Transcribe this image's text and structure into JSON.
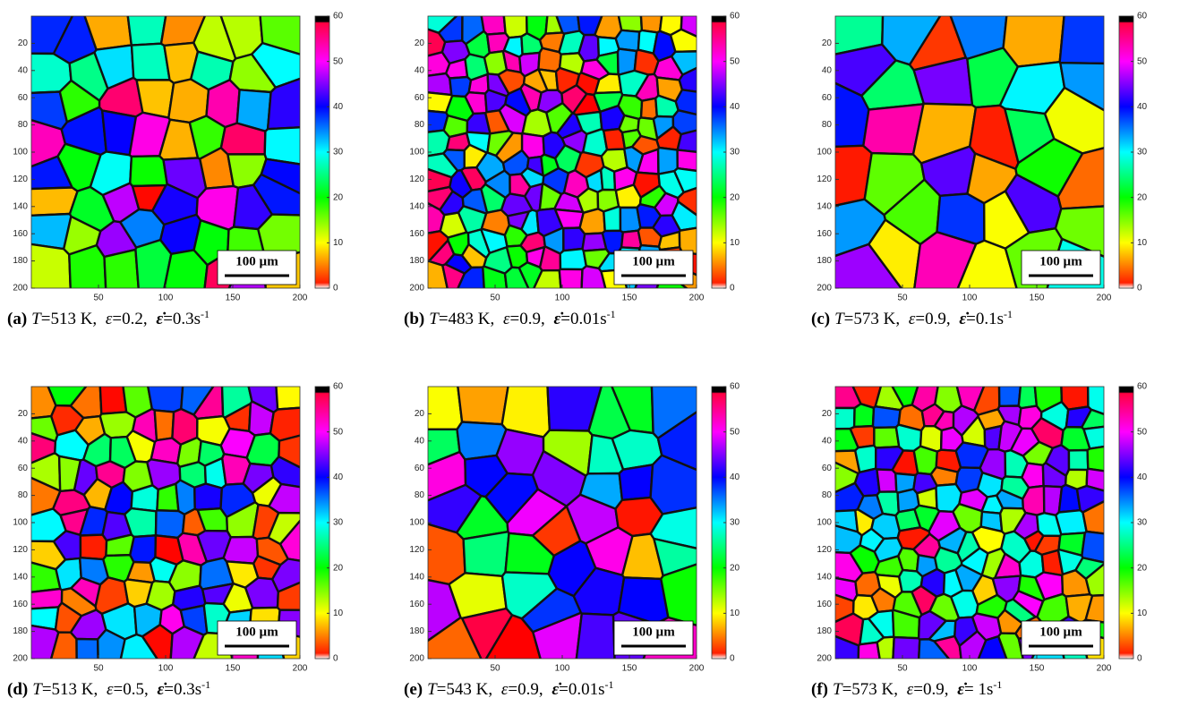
{
  "panels": [
    {
      "caption": [
        {
          "text": "(a)",
          "style": "bold"
        },
        {
          "text": "T",
          "style": "italic"
        },
        {
          "text": "=513 K, "
        },
        {
          "text": "ε",
          "style": "italic"
        },
        {
          "text": "=0.2, "
        },
        {
          "text": "ε̇",
          "style": "bold-italic"
        },
        {
          "text": "=0.3s"
        },
        {
          "text": "-1",
          "style": "sup"
        }
      ],
      "xlim": [
        0,
        200
      ],
      "ylim": [
        0,
        200
      ],
      "xticks": [
        50,
        100,
        150,
        200
      ],
      "yticks": [
        20,
        40,
        60,
        80,
        100,
        120,
        140,
        160,
        180,
        200
      ],
      "colorbar": {
        "lim": [
          0,
          60
        ],
        "ticks": [
          0,
          10,
          20,
          30,
          40,
          50,
          60
        ]
      },
      "scale_bar": "100 µm"
    },
    {
      "caption": [
        {
          "text": "(b)",
          "style": "bold"
        },
        {
          "text": "T",
          "style": "italic"
        },
        {
          "text": "=483 K, "
        },
        {
          "text": "ε",
          "style": "italic"
        },
        {
          "text": "=0.9, "
        },
        {
          "text": "ε̇",
          "style": "bold-italic"
        },
        {
          "text": "=0.01s"
        },
        {
          "text": "-1",
          "style": "sup"
        }
      ],
      "xlim": [
        0,
        200
      ],
      "ylim": [
        0,
        200
      ],
      "xticks": [
        50,
        100,
        150,
        200
      ],
      "yticks": [
        20,
        40,
        60,
        80,
        100,
        120,
        140,
        160,
        180,
        200
      ],
      "colorbar": {
        "lim": [
          0,
          60
        ],
        "ticks": [
          0,
          10,
          20,
          30,
          40,
          50,
          60
        ]
      },
      "scale_bar": "100 µm"
    },
    {
      "caption": [
        {
          "text": "(c)",
          "style": "bold"
        },
        {
          "text": "T",
          "style": "italic"
        },
        {
          "text": "=573 K, "
        },
        {
          "text": "ε",
          "style": "italic"
        },
        {
          "text": "=0.9, "
        },
        {
          "text": "ε̇",
          "style": "bold-italic"
        },
        {
          "text": "=0.1s"
        },
        {
          "text": "-1",
          "style": "sup"
        }
      ],
      "xlim": [
        0,
        200
      ],
      "ylim": [
        0,
        200
      ],
      "xticks": [
        50,
        100,
        150,
        200
      ],
      "yticks": [
        20,
        40,
        60,
        80,
        100,
        120,
        140,
        160,
        180,
        200
      ],
      "colorbar": {
        "lim": [
          0,
          60
        ],
        "ticks": [
          0,
          10,
          20,
          30,
          40,
          50,
          60
        ]
      },
      "scale_bar": "100 µm"
    },
    {
      "caption": [
        {
          "text": "(d)",
          "style": "bold"
        },
        {
          "text": "T",
          "style": "italic"
        },
        {
          "text": "=513 K, "
        },
        {
          "text": "ε",
          "style": "italic"
        },
        {
          "text": "=0.5, "
        },
        {
          "text": "ε̇",
          "style": "bold-italic"
        },
        {
          "text": "=0.3s"
        },
        {
          "text": "-1",
          "style": "sup"
        }
      ],
      "xlim": [
        0,
        200
      ],
      "ylim": [
        0,
        200
      ],
      "xticks": [
        50,
        100,
        150,
        200
      ],
      "yticks": [
        20,
        40,
        60,
        80,
        100,
        120,
        140,
        160,
        180,
        200
      ],
      "colorbar": {
        "lim": [
          0,
          60
        ],
        "ticks": [
          0,
          10,
          20,
          30,
          40,
          50,
          60
        ]
      },
      "scale_bar": "100 µm"
    },
    {
      "caption": [
        {
          "text": "(e)",
          "style": "bold"
        },
        {
          "text": "T",
          "style": "italic"
        },
        {
          "text": "=543 K, "
        },
        {
          "text": "ε",
          "style": "italic"
        },
        {
          "text": "=0.9, "
        },
        {
          "text": "ε̇",
          "style": "bold-italic"
        },
        {
          "text": "=0.01s"
        },
        {
          "text": "-1",
          "style": "sup"
        }
      ],
      "xlim": [
        0,
        200
      ],
      "ylim": [
        0,
        200
      ],
      "xticks": [
        50,
        100,
        150,
        200
      ],
      "yticks": [
        20,
        40,
        60,
        80,
        100,
        120,
        140,
        160,
        180,
        200
      ],
      "colorbar": {
        "lim": [
          0,
          60
        ],
        "ticks": [
          0,
          10,
          20,
          30,
          40,
          50,
          60
        ]
      },
      "scale_bar": "100 µm"
    },
    {
      "caption": [
        {
          "text": "(f)",
          "style": "bold"
        },
        {
          "text": "T",
          "style": "italic"
        },
        {
          "text": "=573 K, "
        },
        {
          "text": "ε",
          "style": "italic"
        },
        {
          "text": "=0.9, "
        },
        {
          "text": "ε̇",
          "style": "bold-italic"
        },
        {
          "text": "= 1s"
        },
        {
          "text": "-1",
          "style": "sup"
        }
      ],
      "xlim": [
        0,
        200
      ],
      "ylim": [
        0,
        200
      ],
      "xticks": [
        50,
        100,
        150,
        200
      ],
      "yticks": [
        20,
        40,
        60,
        80,
        100,
        120,
        140,
        160,
        180,
        200
      ],
      "colorbar": {
        "lim": [
          0,
          60
        ],
        "ticks": [
          0,
          10,
          20,
          30,
          40,
          50,
          60
        ]
      },
      "scale_bar": "100 µm"
    }
  ]
}
